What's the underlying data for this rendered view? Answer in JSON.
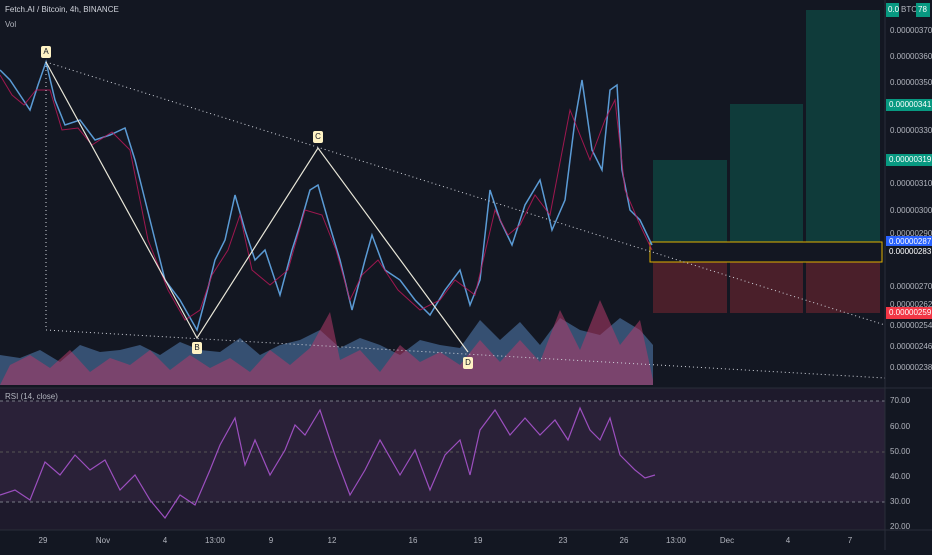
{
  "header": {
    "title": "Fetch.AI / Bitcoin, 4h, BINANCE",
    "volume": "Vol",
    "currency": "BTC",
    "top_price": "0.0",
    "countdown": "78"
  },
  "price_axis": {
    "labels": [
      "0.00000370",
      "0.00000360",
      "0.00000350",
      "0.00000330",
      "0.00000310",
      "0.00000300",
      "0.00000290",
      "0.00000270",
      "0.00000262",
      "0.00000254",
      "0.00000246",
      "0.00000238"
    ],
    "highlighted": [
      {
        "label": "0.00000341",
        "kind": "target"
      },
      {
        "label": "0.00000319",
        "kind": "target"
      },
      {
        "label": "0.00000287",
        "kind": "current"
      },
      {
        "label": "0.00000283",
        "kind": "entry"
      },
      {
        "label": "0.00000259",
        "kind": "stop"
      }
    ]
  },
  "pattern": {
    "labels": [
      "A",
      "B",
      "C",
      "D"
    ]
  },
  "rsi": {
    "title": "RSI (14, close)",
    "axis_labels": [
      "70.00",
      "60.00",
      "50.00",
      "40.00",
      "30.00",
      "20.00"
    ]
  },
  "time_axis": {
    "labels": [
      "29",
      "Nov",
      "4",
      "13:00",
      "9",
      "12",
      "16",
      "19",
      "23",
      "26",
      "13:00",
      "Dec",
      "4",
      "7"
    ]
  }
}
